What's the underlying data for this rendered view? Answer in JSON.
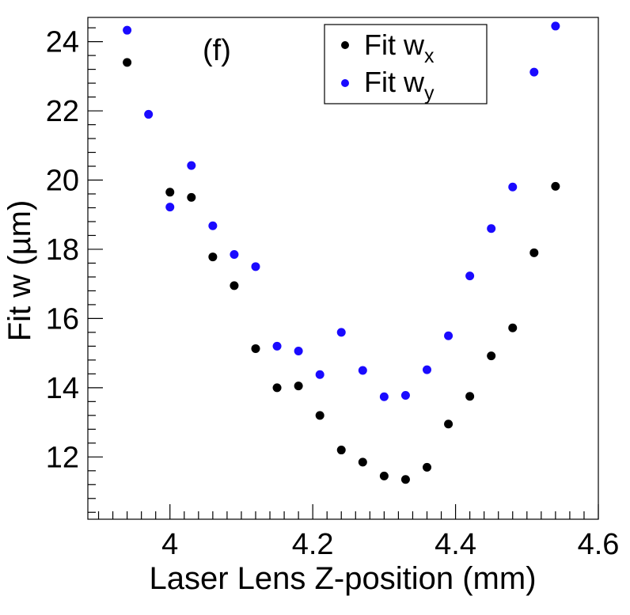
{
  "chart_data": {
    "type": "scatter",
    "panel_label": "(f)",
    "xlabel": "Laser Lens Z-position (mm)",
    "ylabel": "Fit w (µm)",
    "xlim": [
      3.885,
      4.6
    ],
    "ylim": [
      10.2,
      24.7
    ],
    "x_ticks": [
      4.0,
      4.2,
      4.4,
      4.6
    ],
    "x_tick_labels": [
      "4",
      "4.2",
      "4.4",
      "4.6"
    ],
    "y_ticks": [
      12,
      14,
      16,
      18,
      20,
      22,
      24
    ],
    "y_tick_labels": [
      "12",
      "14",
      "16",
      "18",
      "20",
      "22",
      "24"
    ],
    "grid": false,
    "legend_position": "top-right",
    "series": [
      {
        "name": "Fit w_x",
        "label_main": "Fit w",
        "label_sub": "x",
        "color": "#000000",
        "points": [
          {
            "x": 3.94,
            "y": 23.4
          },
          {
            "x": 4.0,
            "y": 19.65
          },
          {
            "x": 4.03,
            "y": 19.5
          },
          {
            "x": 4.06,
            "y": 17.78
          },
          {
            "x": 4.09,
            "y": 16.95
          },
          {
            "x": 4.12,
            "y": 15.13
          },
          {
            "x": 4.15,
            "y": 14.0
          },
          {
            "x": 4.18,
            "y": 14.05
          },
          {
            "x": 4.21,
            "y": 13.2
          },
          {
            "x": 4.24,
            "y": 12.2
          },
          {
            "x": 4.27,
            "y": 11.85
          },
          {
            "x": 4.3,
            "y": 11.45
          },
          {
            "x": 4.33,
            "y": 11.35
          },
          {
            "x": 4.36,
            "y": 11.7
          },
          {
            "x": 4.39,
            "y": 12.95
          },
          {
            "x": 4.42,
            "y": 13.75
          },
          {
            "x": 4.45,
            "y": 14.92
          },
          {
            "x": 4.48,
            "y": 15.73
          },
          {
            "x": 4.51,
            "y": 17.9
          },
          {
            "x": 4.54,
            "y": 19.82
          }
        ]
      },
      {
        "name": "Fit w_y",
        "label_main": "Fit w",
        "label_sub": "y",
        "color": "#1a0aff",
        "points": [
          {
            "x": 3.94,
            "y": 24.33
          },
          {
            "x": 3.97,
            "y": 21.9
          },
          {
            "x": 4.0,
            "y": 19.22
          },
          {
            "x": 4.03,
            "y": 20.42
          },
          {
            "x": 4.06,
            "y": 18.68
          },
          {
            "x": 4.09,
            "y": 17.85
          },
          {
            "x": 4.12,
            "y": 17.5
          },
          {
            "x": 4.15,
            "y": 15.2
          },
          {
            "x": 4.18,
            "y": 15.06
          },
          {
            "x": 4.21,
            "y": 14.38
          },
          {
            "x": 4.24,
            "y": 15.6
          },
          {
            "x": 4.27,
            "y": 14.5
          },
          {
            "x": 4.3,
            "y": 13.74
          },
          {
            "x": 4.33,
            "y": 13.78
          },
          {
            "x": 4.36,
            "y": 14.52
          },
          {
            "x": 4.39,
            "y": 15.5
          },
          {
            "x": 4.42,
            "y": 17.23
          },
          {
            "x": 4.45,
            "y": 18.6
          },
          {
            "x": 4.48,
            "y": 19.8
          },
          {
            "x": 4.51,
            "y": 23.12
          },
          {
            "x": 4.54,
            "y": 24.45
          }
        ]
      }
    ]
  }
}
